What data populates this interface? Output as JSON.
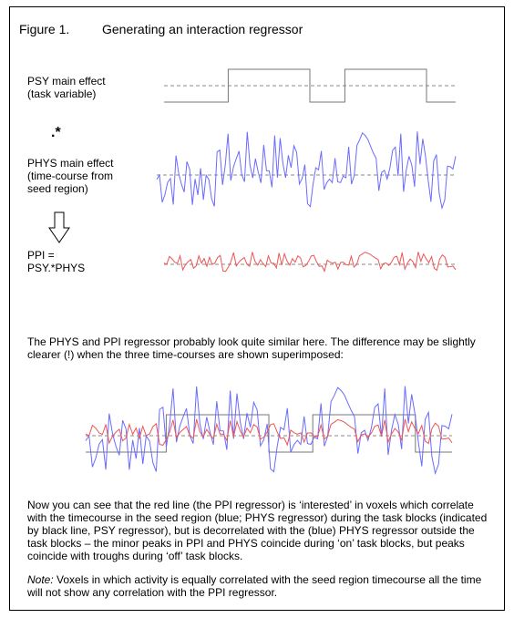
{
  "figure": {
    "label": "Figure 1.",
    "title": "Generating an interaction regressor"
  },
  "labels": {
    "psy": "PSY main effect\n(task variable)",
    "star": ".*",
    "phys": "PHYS main effect\n(time-course from\nseed region)",
    "ppi": "PPI =\nPSY.*PHYS"
  },
  "paragraphs": {
    "intro": "The PHYS and PPI regressor probably look quite similar here. The difference may be slightly clearer (!) when the three time-courses are shown superimposed:",
    "explanation": "Now you can see that the red line (the PPI regressor) is ‘interested’ in voxels which correlate with the timecourse in the seed region (blue; PHYS regressor) during the task blocks (indicated by black line, PSY regressor), but is decorrelated with the (blue) PHYS regressor outside the task blocks – the minor peaks in PPI and PHYS coincide during ‘on’ task blocks, but peaks coincide with troughs during ‘off’ task blocks.",
    "note_label": "Note:",
    "note_text": " Voxels in which activity is equally correlated with the seed region timecourse all the time will not show any correlation with the PPI regressor."
  },
  "colors": {
    "psy": "#777777",
    "phys": "#6b6bff",
    "ppi": "#ee5555",
    "baseline": "#888888",
    "arrow": "#000000"
  },
  "icons": {
    "arrow": "down-arrow-icon"
  }
}
